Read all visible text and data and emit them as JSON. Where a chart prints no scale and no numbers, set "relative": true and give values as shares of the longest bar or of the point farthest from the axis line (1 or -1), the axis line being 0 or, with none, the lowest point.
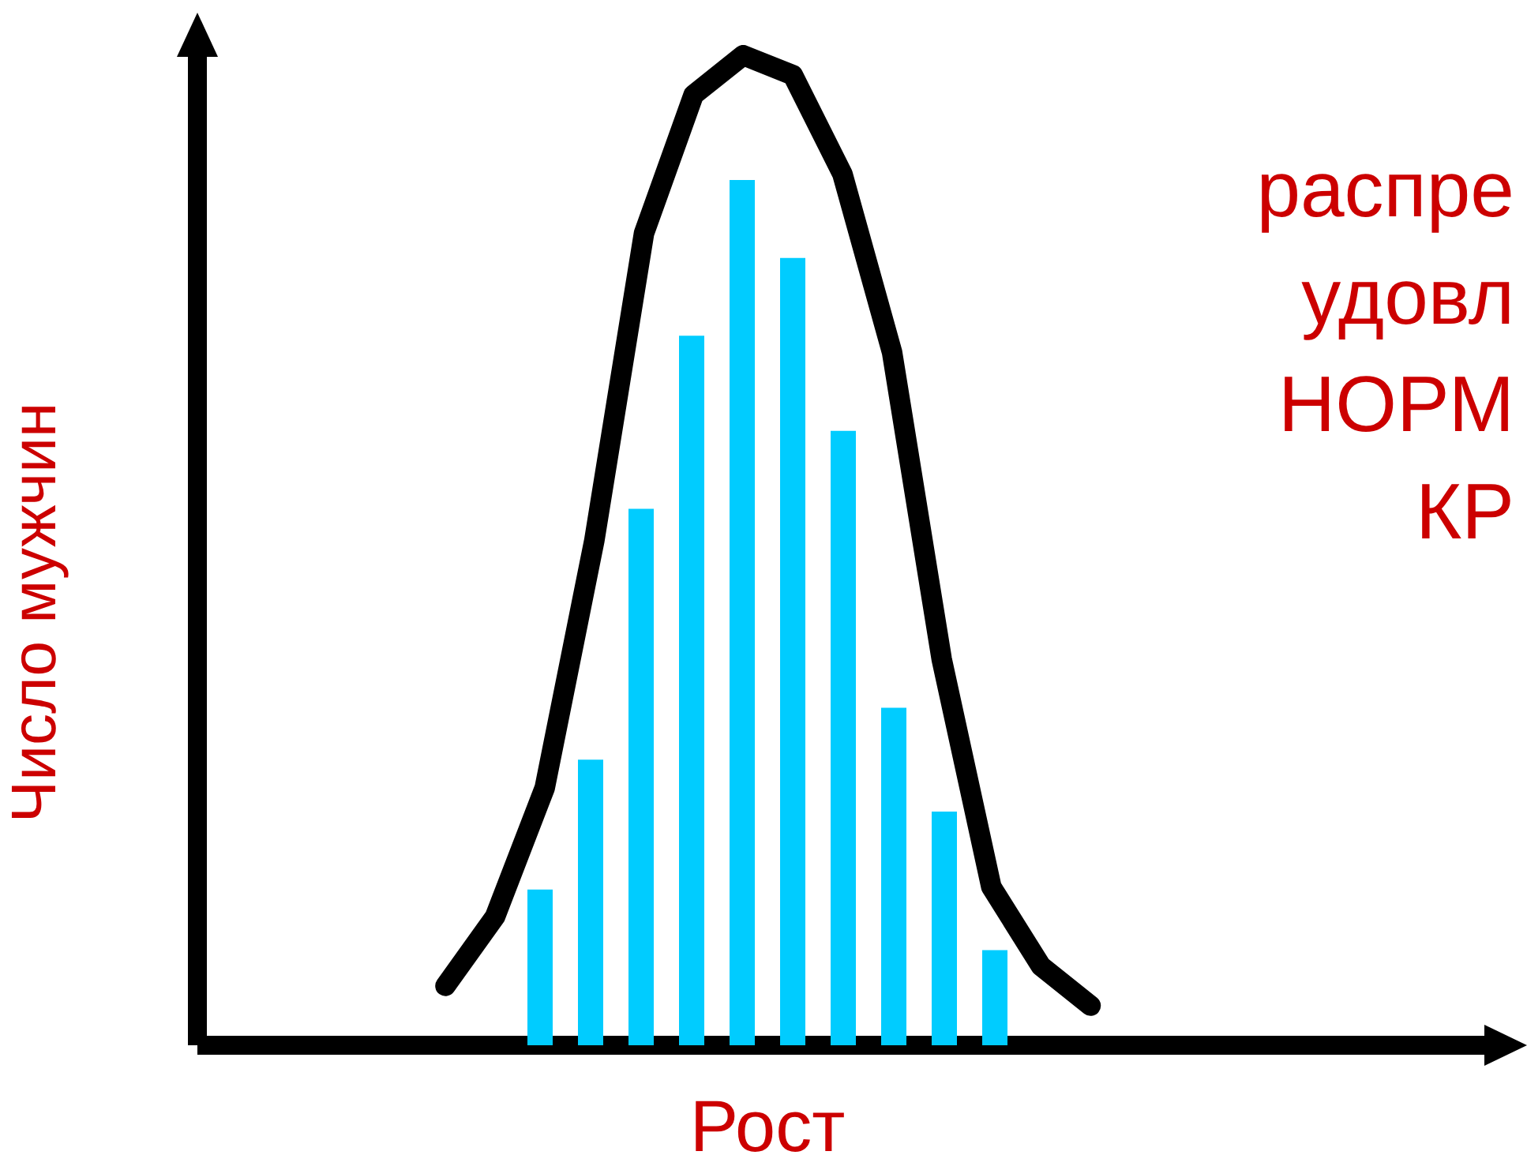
{
  "chart_data": [
    {
      "type": "bar",
      "relative": true,
      "xlabel": "Рост",
      "ylabel": "Число мужчин",
      "grid": false,
      "annotations": [
        "распре",
        "удовл",
        "НОРМ",
        "КР"
      ],
      "categories": [
        null,
        null,
        null,
        null,
        null,
        null,
        null,
        null,
        null,
        null
      ],
      "series": [
        {
          "color": "#00ccff",
          "values": [
            0.18,
            0.33,
            0.62,
            0.82,
            1,
            0.91,
            0.71,
            0.39,
            0.27,
            0.11
          ]
        }
      ]
    },
    {
      "type": "line",
      "relative": true,
      "grid": false,
      "line_style": "solid",
      "categories": [
        null,
        null,
        null,
        null,
        null,
        null,
        null,
        null,
        null,
        null,
        null,
        null,
        null,
        null
      ],
      "series": [
        {
          "color": "#000000",
          "values": [
            0.06,
            0.13,
            0.26,
            0.51,
            0.82,
            0.96,
            1,
            0.98,
            0.88,
            0.7,
            0.39,
            0.16,
            0.08,
            0.04
          ]
        }
      ]
    }
  ]
}
